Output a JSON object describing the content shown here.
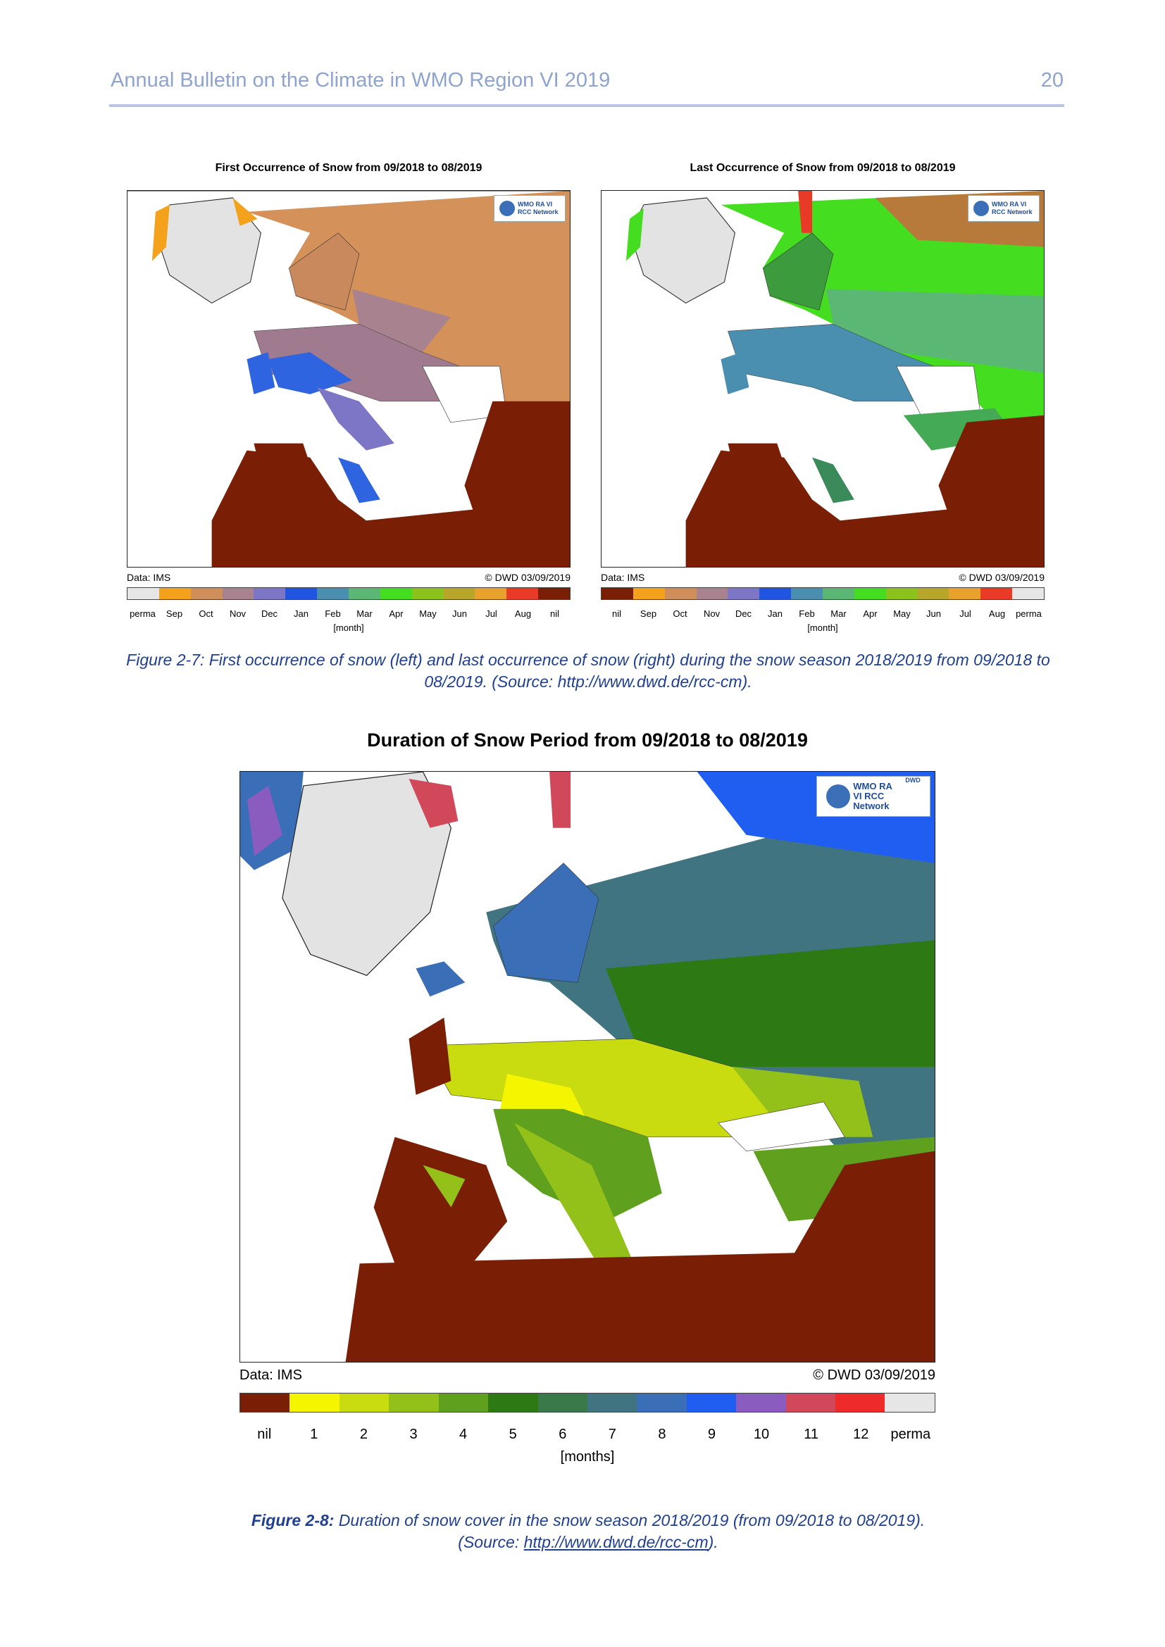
{
  "header": {
    "title": "Annual Bulletin on the Climate in WMO Region VI 2019",
    "page": "20"
  },
  "fig7": {
    "left": {
      "title": "First Occurrence of Snow from 09/2018 to 08/2019",
      "data_label": "Data: IMS",
      "credit": "© DWD 03/09/2019",
      "logo": "WMO RA VI RCC Network",
      "legend": [
        "perma",
        "Sep",
        "Oct",
        "Nov",
        "Dec",
        "Jan",
        "Feb",
        "Mar",
        "Apr",
        "May",
        "Jun",
        "Jul",
        "Aug",
        "nil"
      ],
      "legend_colors": [
        "#e6e6e6",
        "#f4a21c",
        "#d08f5a",
        "#a9828f",
        "#7d75c6",
        "#1f55e0",
        "#4b8fb0",
        "#5bb874",
        "#44dd1f",
        "#8bc21c",
        "#b7a62a",
        "#e8a22c",
        "#e83a26",
        "#7a1f05"
      ],
      "unit": "[month]"
    },
    "right": {
      "title": "Last Occurrence of Snow from 09/2018 to 08/2019",
      "data_label": "Data: IMS",
      "credit": "© DWD 03/09/2019",
      "logo": "WMO RA VI RCC Network",
      "legend": [
        "nil",
        "Sep",
        "Oct",
        "Nov",
        "Dec",
        "Jan",
        "Feb",
        "Mar",
        "Apr",
        "May",
        "Jun",
        "Jul",
        "Aug",
        "perma"
      ],
      "legend_colors": [
        "#7a1f05",
        "#f4a21c",
        "#d08f5a",
        "#a9828f",
        "#7d75c6",
        "#1f55e0",
        "#4b8fb0",
        "#5bb874",
        "#44dd1f",
        "#8bc21c",
        "#b7a62a",
        "#e8a22c",
        "#e83a26",
        "#e6e6e6"
      ],
      "unit": "[month]"
    },
    "caption": "Figure 2-7: First occurrence of snow (left) and last occurrence of snow (right) during the snow season 2018/2019 from 09/2018 to 08/2019. (Source: http://www.dwd.de/rcc-cm)."
  },
  "fig8": {
    "title": "Duration of Snow Period from 09/2018 to 08/2019",
    "data_label": "Data: IMS",
    "credit": "© DWD 03/09/2019",
    "logo": "WMO RA VI RCC Network",
    "logo_tag": "DWD",
    "legend": [
      "nil",
      "1",
      "2",
      "3",
      "4",
      "5",
      "6",
      "7",
      "8",
      "9",
      "10",
      "11",
      "12",
      "perma"
    ],
    "legend_colors": [
      "#7a1f05",
      "#f5f500",
      "#c8dc10",
      "#94c01a",
      "#5fa01e",
      "#2d7a14",
      "#3a7a4a",
      "#3f7480",
      "#3a6fb8",
      "#1f5ef0",
      "#8a5cbf",
      "#d0485a",
      "#ee2a2a",
      "#e6e6e6"
    ],
    "unit": "[months]",
    "caption_label": "Figure 2-8:",
    "caption_text": " Duration of snow cover in the snow season 2018/2019 (from 09/2018 to 08/2019).",
    "caption_source_prefix": "(Source: ",
    "caption_link": "http://www.dwd.de/rcc-cm",
    "caption_source_suffix": ")."
  }
}
